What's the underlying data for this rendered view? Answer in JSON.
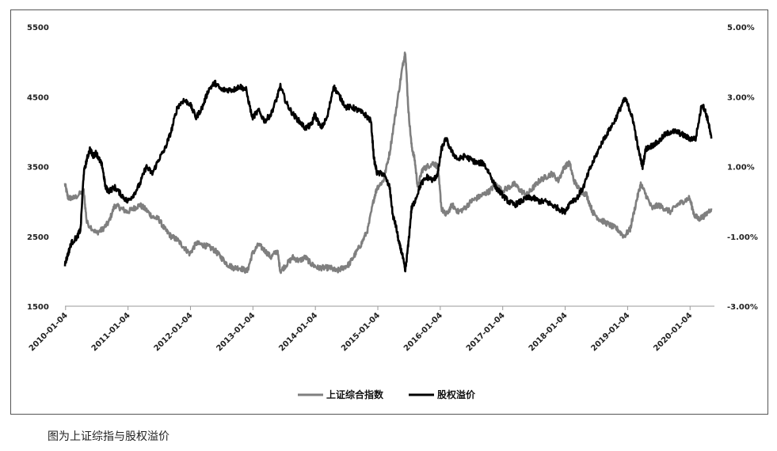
{
  "chart_data": {
    "type": "line",
    "title": "",
    "xlabel": "",
    "ylabel": "",
    "y_left": {
      "range": [
        1500,
        5500
      ],
      "ticks": [
        1500,
        2500,
        3500,
        4500,
        5500
      ]
    },
    "y_right": {
      "range": [
        -3.0,
        5.0
      ],
      "ticks": [
        "-3.00%",
        "-1.00%",
        "1.00%",
        "3.00%",
        "5.00%"
      ]
    },
    "x_ticks": [
      "2010-01-04",
      "2011-01-04",
      "2012-01-04",
      "2013-01-04",
      "2014-01-04",
      "2015-01-04",
      "2016-01-04",
      "2017-01-04",
      "2018-01-04",
      "2019-01-04",
      "2020-01-04"
    ],
    "x_range": [
      2010.0,
      2020.4
    ],
    "grid": false,
    "legend_position": "bottom",
    "series": [
      {
        "name": "上证综合指数",
        "axis": "left",
        "color": "#7f7f7f",
        "points": [
          [
            2010.0,
            3250
          ],
          [
            2010.05,
            3050
          ],
          [
            2010.15,
            3050
          ],
          [
            2010.3,
            3150
          ],
          [
            2010.35,
            2700
          ],
          [
            2010.5,
            2550
          ],
          [
            2010.6,
            2600
          ],
          [
            2010.7,
            2700
          ],
          [
            2010.8,
            2950
          ],
          [
            2010.9,
            2900
          ],
          [
            2011.0,
            2850
          ],
          [
            2011.1,
            2900
          ],
          [
            2011.2,
            2950
          ],
          [
            2011.3,
            2880
          ],
          [
            2011.4,
            2780
          ],
          [
            2011.5,
            2750
          ],
          [
            2011.6,
            2600
          ],
          [
            2011.7,
            2500
          ],
          [
            2011.8,
            2450
          ],
          [
            2011.9,
            2350
          ],
          [
            2012.0,
            2250
          ],
          [
            2012.1,
            2400
          ],
          [
            2012.2,
            2380
          ],
          [
            2012.3,
            2350
          ],
          [
            2012.4,
            2300
          ],
          [
            2012.5,
            2200
          ],
          [
            2012.6,
            2100
          ],
          [
            2012.7,
            2050
          ],
          [
            2012.8,
            2050
          ],
          [
            2012.92,
            2000
          ],
          [
            2013.0,
            2250
          ],
          [
            2013.1,
            2380
          ],
          [
            2013.2,
            2300
          ],
          [
            2013.3,
            2200
          ],
          [
            2013.4,
            2300
          ],
          [
            2013.45,
            2000
          ],
          [
            2013.55,
            2100
          ],
          [
            2013.65,
            2200
          ],
          [
            2013.75,
            2150
          ],
          [
            2013.85,
            2200
          ],
          [
            2013.95,
            2100
          ],
          [
            2014.05,
            2050
          ],
          [
            2014.15,
            2050
          ],
          [
            2014.25,
            2050
          ],
          [
            2014.35,
            2000
          ],
          [
            2014.45,
            2050
          ],
          [
            2014.55,
            2100
          ],
          [
            2014.65,
            2250
          ],
          [
            2014.75,
            2400
          ],
          [
            2014.85,
            2600
          ],
          [
            2014.95,
            3050
          ],
          [
            2015.0,
            3200
          ],
          [
            2015.1,
            3300
          ],
          [
            2015.2,
            3700
          ],
          [
            2015.3,
            4300
          ],
          [
            2015.4,
            4900
          ],
          [
            2015.45,
            5150
          ],
          [
            2015.5,
            4300
          ],
          [
            2015.55,
            3800
          ],
          [
            2015.6,
            3600
          ],
          [
            2015.65,
            3200
          ],
          [
            2015.72,
            3450
          ],
          [
            2015.8,
            3500
          ],
          [
            2015.9,
            3550
          ],
          [
            2015.97,
            3500
          ],
          [
            2016.03,
            2900
          ],
          [
            2016.1,
            2800
          ],
          [
            2016.2,
            2950
          ],
          [
            2016.3,
            2850
          ],
          [
            2016.4,
            2900
          ],
          [
            2016.5,
            3000
          ],
          [
            2016.6,
            3050
          ],
          [
            2016.7,
            3100
          ],
          [
            2016.8,
            3150
          ],
          [
            2016.9,
            3250
          ],
          [
            2017.0,
            3150
          ],
          [
            2017.1,
            3200
          ],
          [
            2017.2,
            3250
          ],
          [
            2017.3,
            3150
          ],
          [
            2017.4,
            3100
          ],
          [
            2017.5,
            3200
          ],
          [
            2017.6,
            3300
          ],
          [
            2017.7,
            3350
          ],
          [
            2017.8,
            3400
          ],
          [
            2017.9,
            3300
          ],
          [
            2018.0,
            3500
          ],
          [
            2018.08,
            3550
          ],
          [
            2018.15,
            3300
          ],
          [
            2018.25,
            3150
          ],
          [
            2018.35,
            3100
          ],
          [
            2018.45,
            2850
          ],
          [
            2018.55,
            2750
          ],
          [
            2018.65,
            2700
          ],
          [
            2018.75,
            2650
          ],
          [
            2018.85,
            2600
          ],
          [
            2018.95,
            2500
          ],
          [
            2019.05,
            2600
          ],
          [
            2019.15,
            3000
          ],
          [
            2019.22,
            3250
          ],
          [
            2019.3,
            3100
          ],
          [
            2019.4,
            2900
          ],
          [
            2019.5,
            2950
          ],
          [
            2019.6,
            2900
          ],
          [
            2019.7,
            2850
          ],
          [
            2019.8,
            2950
          ],
          [
            2019.9,
            3000
          ],
          [
            2020.0,
            3050
          ],
          [
            2020.08,
            2800
          ],
          [
            2020.15,
            2750
          ],
          [
            2020.25,
            2800
          ],
          [
            2020.35,
            2900
          ]
        ]
      },
      {
        "name": "股权溢价",
        "axis": "right",
        "color": "#000000",
        "points": [
          [
            2010.0,
            -1.8
          ],
          [
            2010.05,
            -1.5
          ],
          [
            2010.1,
            -1.2
          ],
          [
            2010.2,
            -1.0
          ],
          [
            2010.25,
            -0.8
          ],
          [
            2010.3,
            0.8
          ],
          [
            2010.35,
            1.2
          ],
          [
            2010.4,
            1.5
          ],
          [
            2010.45,
            1.3
          ],
          [
            2010.5,
            1.4
          ],
          [
            2010.55,
            1.2
          ],
          [
            2010.6,
            1.0
          ],
          [
            2010.65,
            0.4
          ],
          [
            2010.7,
            0.3
          ],
          [
            2010.8,
            0.4
          ],
          [
            2010.9,
            0.2
          ],
          [
            2011.0,
            0.0
          ],
          [
            2011.1,
            0.2
          ],
          [
            2011.2,
            0.5
          ],
          [
            2011.3,
            1.0
          ],
          [
            2011.4,
            0.8
          ],
          [
            2011.5,
            1.2
          ],
          [
            2011.6,
            1.5
          ],
          [
            2011.7,
            2.0
          ],
          [
            2011.8,
            2.7
          ],
          [
            2011.9,
            2.9
          ],
          [
            2012.0,
            2.8
          ],
          [
            2012.1,
            2.4
          ],
          [
            2012.2,
            2.7
          ],
          [
            2012.3,
            3.2
          ],
          [
            2012.4,
            3.4
          ],
          [
            2012.5,
            3.2
          ],
          [
            2012.6,
            3.2
          ],
          [
            2012.7,
            3.2
          ],
          [
            2012.8,
            3.3
          ],
          [
            2012.9,
            3.2
          ],
          [
            2013.0,
            2.4
          ],
          [
            2013.1,
            2.6
          ],
          [
            2013.2,
            2.3
          ],
          [
            2013.3,
            2.5
          ],
          [
            2013.4,
            3.0
          ],
          [
            2013.45,
            3.3
          ],
          [
            2013.55,
            2.8
          ],
          [
            2013.65,
            2.5
          ],
          [
            2013.75,
            2.3
          ],
          [
            2013.85,
            2.1
          ],
          [
            2013.95,
            2.2
          ],
          [
            2014.0,
            2.5
          ],
          [
            2014.1,
            2.1
          ],
          [
            2014.2,
            2.4
          ],
          [
            2014.3,
            3.3
          ],
          [
            2014.4,
            3.0
          ],
          [
            2014.5,
            2.7
          ],
          [
            2014.6,
            2.7
          ],
          [
            2014.7,
            2.6
          ],
          [
            2014.8,
            2.5
          ],
          [
            2014.9,
            2.3
          ],
          [
            2014.95,
            1.2
          ],
          [
            2015.0,
            0.8
          ],
          [
            2015.1,
            0.8
          ],
          [
            2015.2,
            0.4
          ],
          [
            2015.25,
            -0.4
          ],
          [
            2015.3,
            -0.7
          ],
          [
            2015.35,
            -1.2
          ],
          [
            2015.4,
            -1.5
          ],
          [
            2015.45,
            -2.0
          ],
          [
            2015.5,
            -1.2
          ],
          [
            2015.55,
            -0.2
          ],
          [
            2015.6,
            0.0
          ],
          [
            2015.7,
            0.5
          ],
          [
            2015.8,
            0.7
          ],
          [
            2015.9,
            0.6
          ],
          [
            2015.97,
            0.8
          ],
          [
            2016.03,
            1.5
          ],
          [
            2016.1,
            1.8
          ],
          [
            2016.2,
            1.4
          ],
          [
            2016.3,
            1.2
          ],
          [
            2016.4,
            1.3
          ],
          [
            2016.5,
            1.2
          ],
          [
            2016.6,
            1.1
          ],
          [
            2016.7,
            1.1
          ],
          [
            2016.8,
            0.8
          ],
          [
            2016.9,
            0.4
          ],
          [
            2017.0,
            0.2
          ],
          [
            2017.1,
            0.0
          ],
          [
            2017.2,
            -0.1
          ],
          [
            2017.3,
            0.0
          ],
          [
            2017.4,
            0.1
          ],
          [
            2017.5,
            0.1
          ],
          [
            2017.6,
            0.0
          ],
          [
            2017.7,
            0.0
          ],
          [
            2017.8,
            -0.1
          ],
          [
            2017.9,
            -0.2
          ],
          [
            2018.0,
            -0.3
          ],
          [
            2018.1,
            0.0
          ],
          [
            2018.2,
            0.1
          ],
          [
            2018.3,
            0.4
          ],
          [
            2018.4,
            0.9
          ],
          [
            2018.5,
            1.3
          ],
          [
            2018.6,
            1.7
          ],
          [
            2018.7,
            2.0
          ],
          [
            2018.8,
            2.3
          ],
          [
            2018.9,
            2.7
          ],
          [
            2018.97,
            2.95
          ],
          [
            2019.05,
            2.6
          ],
          [
            2019.1,
            2.3
          ],
          [
            2019.18,
            1.5
          ],
          [
            2019.25,
            1.0
          ],
          [
            2019.3,
            1.5
          ],
          [
            2019.4,
            1.6
          ],
          [
            2019.5,
            1.7
          ],
          [
            2019.6,
            1.9
          ],
          [
            2019.7,
            2.0
          ],
          [
            2019.8,
            2.0
          ],
          [
            2019.9,
            1.9
          ],
          [
            2020.0,
            1.8
          ],
          [
            2020.1,
            1.8
          ],
          [
            2020.2,
            2.8
          ],
          [
            2020.25,
            2.6
          ],
          [
            2020.3,
            2.3
          ],
          [
            2020.35,
            1.8
          ]
        ]
      }
    ]
  },
  "caption": "图为上证综指与股权溢价"
}
